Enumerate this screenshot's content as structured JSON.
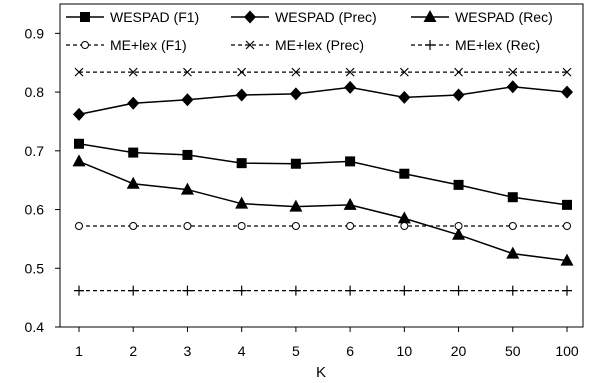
{
  "chart_data": {
    "type": "line",
    "categories": [
      "1",
      "2",
      "3",
      "4",
      "5",
      "6",
      "10",
      "20",
      "50",
      "100"
    ],
    "xlabel": "K",
    "ylabel": "",
    "ylim": [
      0.4,
      0.95
    ],
    "yticks": [
      "0.4",
      "0.5",
      "0.6",
      "0.7",
      "0.8",
      "0.9"
    ],
    "grid": false,
    "legend_position": "top",
    "series": [
      {
        "name": "WESPAD (F1)",
        "marker": "square",
        "dash": "solid",
        "values": [
          0.712,
          0.697,
          0.693,
          0.679,
          0.678,
          0.682,
          0.661,
          0.642,
          0.621,
          0.608
        ]
      },
      {
        "name": "WESPAD (Prec)",
        "marker": "diamond",
        "dash": "solid",
        "values": [
          0.762,
          0.781,
          0.787,
          0.795,
          0.797,
          0.808,
          0.791,
          0.795,
          0.809,
          0.8
        ]
      },
      {
        "name": "WESPAD (Rec)",
        "marker": "triangle",
        "dash": "solid",
        "values": [
          0.682,
          0.644,
          0.634,
          0.61,
          0.605,
          0.608,
          0.585,
          0.557,
          0.525,
          0.513
        ]
      },
      {
        "name": "ME+lex (F1)",
        "marker": "circle",
        "dash": "dashed",
        "values": [
          0.572,
          0.572,
          0.572,
          0.572,
          0.572,
          0.572,
          0.572,
          0.572,
          0.572,
          0.572
        ]
      },
      {
        "name": "ME+lex (Prec)",
        "marker": "x",
        "dash": "dashed",
        "values": [
          0.834,
          0.834,
          0.834,
          0.834,
          0.834,
          0.834,
          0.834,
          0.834,
          0.834,
          0.834
        ]
      },
      {
        "name": "ME+lex (Rec)",
        "marker": "plus",
        "dash": "dashed",
        "values": [
          0.462,
          0.462,
          0.462,
          0.462,
          0.462,
          0.462,
          0.462,
          0.462,
          0.462,
          0.462
        ]
      }
    ]
  }
}
